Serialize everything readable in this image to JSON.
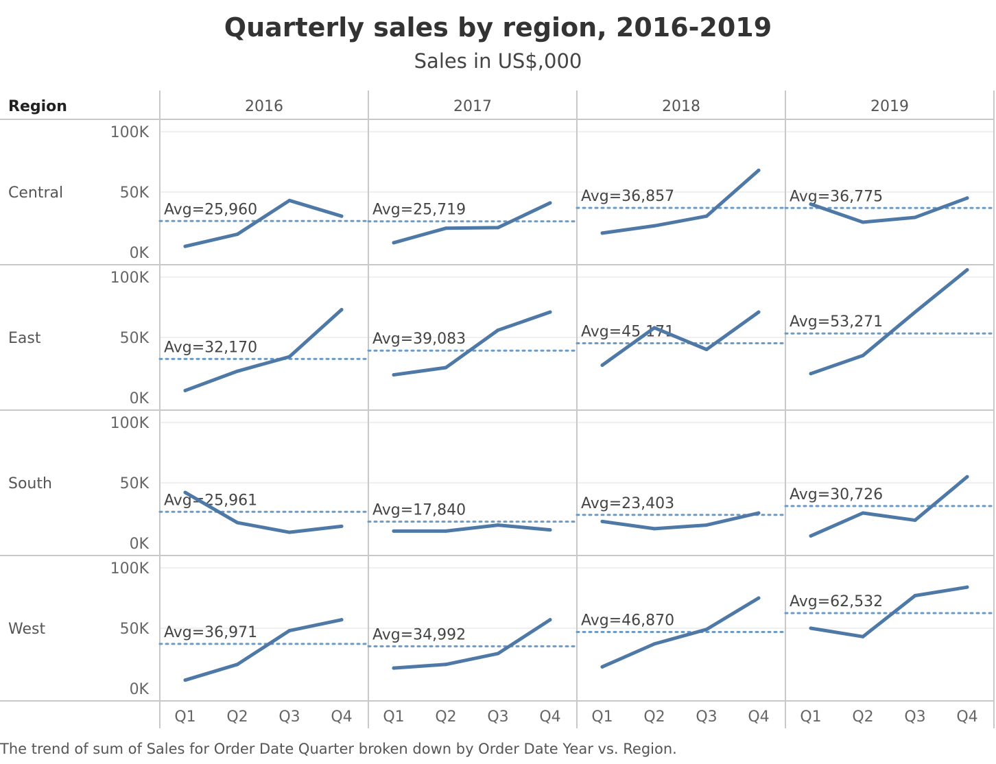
{
  "chart": {
    "title": "Quarterly sales by region, 2016-2019",
    "subtitle": "Sales in US$,000",
    "caption": "The trend of sum of Sales for Order Date Quarter broken down by Order Date Year vs. Region.",
    "row_header": "Region",
    "line_color": "#4e79a7",
    "avg_line_color": "#6b9bc7",
    "highlight_color": "#a9bfd6"
  },
  "chart_data": {
    "type": "line",
    "years": [
      "2016",
      "2017",
      "2018",
      "2019"
    ],
    "quarters": [
      "Q1",
      "Q2",
      "Q3",
      "Q4"
    ],
    "regions": [
      "Central",
      "East",
      "South",
      "West"
    ],
    "y_ticks": [
      "100K",
      "50K",
      "0K"
    ],
    "ylim": [
      0,
      100000
    ],
    "reference_line": "average",
    "grid": true,
    "series": [
      {
        "region": "Central",
        "panels": [
          {
            "year": "2016",
            "values": [
              5000,
              15000,
              43000,
              30000
            ],
            "avg_label": "Avg=25,960",
            "avg": 25960
          },
          {
            "year": "2017",
            "values": [
              8000,
              20000,
              20500,
              41000
            ],
            "avg_label": "Avg=25,719",
            "avg": 25719
          },
          {
            "year": "2018",
            "values": [
              16000,
              22000,
              30000,
              68000
            ],
            "avg_label": "Avg=36,857",
            "avg": 36857
          },
          {
            "year": "2019",
            "values": [
              40000,
              25000,
              29000,
              45000
            ],
            "avg_label": "Avg=36,775",
            "avg": 36775
          }
        ]
      },
      {
        "region": "East",
        "panels": [
          {
            "year": "2016",
            "values": [
              6000,
              22000,
              34000,
              73000
            ],
            "avg_label": "Avg=32,170",
            "avg": 32170
          },
          {
            "year": "2017",
            "values": [
              19000,
              25000,
              56000,
              71000
            ],
            "avg_label": "Avg=39,083",
            "avg": 39083
          },
          {
            "year": "2018",
            "values": [
              27000,
              58000,
              40000,
              71000
            ],
            "avg_label": "Avg=45,171",
            "avg": 45171
          },
          {
            "year": "2019",
            "values": [
              20000,
              35000,
              71000,
              106000
            ],
            "avg_label": "Avg=53,271",
            "avg": 53271
          }
        ]
      },
      {
        "region": "South",
        "panels": [
          {
            "year": "2016",
            "values": [
              42000,
              17000,
              9000,
              14000
            ],
            "avg_label": "Avg=25,961",
            "avg": 25961
          },
          {
            "year": "2017",
            "values": [
              10000,
              10000,
              15000,
              11000
            ],
            "avg_label": "Avg=17,840",
            "avg": 17840
          },
          {
            "year": "2018",
            "values": [
              18000,
              12000,
              15000,
              25000
            ],
            "avg_label": "Avg=23,403",
            "avg": 23403
          },
          {
            "year": "2019",
            "values": [
              6000,
              25000,
              19000,
              55000
            ],
            "avg_label": "Avg=30,726",
            "avg": 30726
          }
        ]
      },
      {
        "region": "West",
        "panels": [
          {
            "year": "2016",
            "values": [
              7000,
              20000,
              48000,
              57000
            ],
            "avg_label": "Avg=36,971",
            "avg": 36971
          },
          {
            "year": "2017",
            "values": [
              17000,
              20000,
              29000,
              57000
            ],
            "avg_label": "Avg=34,992",
            "avg": 34992
          },
          {
            "year": "2018",
            "values": [
              18000,
              37000,
              49000,
              75000
            ],
            "avg_label": "Avg=46,870",
            "avg": 46870
          },
          {
            "year": "2019",
            "values": [
              50000,
              43000,
              77000,
              84000
            ],
            "avg_label": "Avg=62,532",
            "avg": 62532
          }
        ]
      }
    ]
  }
}
